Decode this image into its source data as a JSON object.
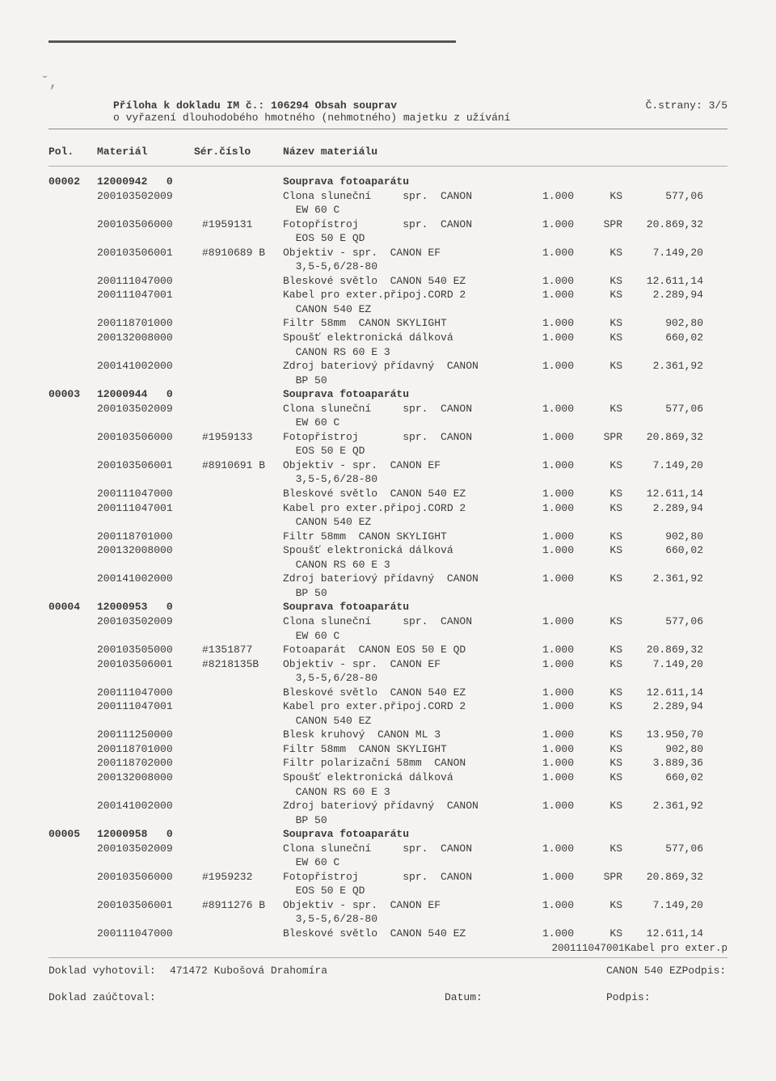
{
  "header": {
    "title_prefix": "Příloha k dokladu IM č.: ",
    "doc_no": "106294",
    "title_suffix": " Obsah souprav",
    "subtitle": "o vyřazení dlouhodobého hmotného (nehmotného) majetku z užívání",
    "page_label": "Č.strany: 3/5"
  },
  "columns": {
    "pol": "Pol.",
    "material": "Materiál",
    "serial": "Sér.číslo",
    "name": "Název materiálu"
  },
  "groups": [
    {
      "pol": "00002",
      "material": "12000942",
      "serial": "0",
      "name": "Souprava fotoaparátu",
      "items": [
        {
          "mat": "200103502009",
          "ser": "",
          "name": "Clona sluneční     spr.  CANON\n  EW 60 C",
          "qty": "1.000",
          "unit": "KS",
          "val": "577,06"
        },
        {
          "mat": "200103506000",
          "ser": "#1959131",
          "name": "Fotopřístroj       spr.  CANON\n  EOS 50 E QD",
          "qty": "1.000",
          "unit": "SPR",
          "val": "20.869,32"
        },
        {
          "mat": "200103506001",
          "ser": "#8910689 B",
          "name": "Objektiv - spr.  CANON EF\n  3,5-5,6/28-80",
          "qty": "1.000",
          "unit": "KS",
          "val": "7.149,20"
        },
        {
          "mat": "200111047000",
          "ser": "",
          "name": "Bleskové světlo  CANON 540 EZ",
          "qty": "1.000",
          "unit": "KS",
          "val": "12.611,14"
        },
        {
          "mat": "200111047001",
          "ser": "",
          "name": "Kabel pro exter.připoj.CORD 2\n  CANON 540 EZ",
          "qty": "1.000",
          "unit": "KS",
          "val": "2.289,94"
        },
        {
          "mat": "200118701000",
          "ser": "",
          "name": "Filtr 58mm  CANON SKYLIGHT",
          "qty": "1.000",
          "unit": "KS",
          "val": "902,80"
        },
        {
          "mat": "200132008000",
          "ser": "",
          "name": "Spoušť elektronická dálková\n  CANON RS 60 E 3",
          "qty": "1.000",
          "unit": "KS",
          "val": "660,02"
        },
        {
          "mat": "200141002000",
          "ser": "",
          "name": "Zdroj bateriový přídavný  CANON\n  BP 50",
          "qty": "1.000",
          "unit": "KS",
          "val": "2.361,92"
        }
      ]
    },
    {
      "pol": "00003",
      "material": "12000944",
      "serial": "0",
      "name": "Souprava fotoaparátu",
      "items": [
        {
          "mat": "200103502009",
          "ser": "",
          "name": "Clona sluneční     spr.  CANON\n  EW 60 C",
          "qty": "1.000",
          "unit": "KS",
          "val": "577,06"
        },
        {
          "mat": "200103506000",
          "ser": "#1959133",
          "name": "Fotopřístroj       spr.  CANON\n  EOS 50 E QD",
          "qty": "1.000",
          "unit": "SPR",
          "val": "20.869,32"
        },
        {
          "mat": "200103506001",
          "ser": "#8910691 B",
          "name": "Objektiv - spr.  CANON EF\n  3,5-5,6/28-80",
          "qty": "1.000",
          "unit": "KS",
          "val": "7.149,20"
        },
        {
          "mat": "200111047000",
          "ser": "",
          "name": "Bleskové světlo  CANON 540 EZ",
          "qty": "1.000",
          "unit": "KS",
          "val": "12.611,14"
        },
        {
          "mat": "200111047001",
          "ser": "",
          "name": "Kabel pro exter.připoj.CORD 2\n  CANON 540 EZ",
          "qty": "1.000",
          "unit": "KS",
          "val": "2.289,94"
        },
        {
          "mat": "200118701000",
          "ser": "",
          "name": "Filtr 58mm  CANON SKYLIGHT",
          "qty": "1.000",
          "unit": "KS",
          "val": "902,80"
        },
        {
          "mat": "200132008000",
          "ser": "",
          "name": "Spoušť elektronická dálková\n  CANON RS 60 E 3",
          "qty": "1.000",
          "unit": "KS",
          "val": "660,02"
        },
        {
          "mat": "200141002000",
          "ser": "",
          "name": "Zdroj bateriový přídavný  CANON\n  BP 50",
          "qty": "1.000",
          "unit": "KS",
          "val": "2.361,92"
        }
      ]
    },
    {
      "pol": "00004",
      "material": "12000953",
      "serial": "0",
      "name": "Souprava fotoaparátu",
      "items": [
        {
          "mat": "200103502009",
          "ser": "",
          "name": "Clona sluneční     spr.  CANON\n  EW 60 C",
          "qty": "1.000",
          "unit": "KS",
          "val": "577,06"
        },
        {
          "mat": "200103505000",
          "ser": "#1351877",
          "name": "Fotoaparát  CANON EOS 50 E QD",
          "qty": "1.000",
          "unit": "KS",
          "val": "20.869,32"
        },
        {
          "mat": "200103506001",
          "ser": "#8218135B",
          "name": "Objektiv - spr.  CANON EF\n  3,5-5,6/28-80",
          "qty": "1.000",
          "unit": "KS",
          "val": "7.149,20"
        },
        {
          "mat": "200111047000",
          "ser": "",
          "name": "Bleskové světlo  CANON 540 EZ",
          "qty": "1.000",
          "unit": "KS",
          "val": "12.611,14"
        },
        {
          "mat": "200111047001",
          "ser": "",
          "name": "Kabel pro exter.připoj.CORD 2\n  CANON 540 EZ",
          "qty": "1.000",
          "unit": "KS",
          "val": "2.289,94"
        },
        {
          "mat": "200111250000",
          "ser": "",
          "name": "Blesk kruhový  CANON ML 3",
          "qty": "1.000",
          "unit": "KS",
          "val": "13.950,70"
        },
        {
          "mat": "200118701000",
          "ser": "",
          "name": "Filtr 58mm  CANON SKYLIGHT",
          "qty": "1.000",
          "unit": "KS",
          "val": "902,80"
        },
        {
          "mat": "200118702000",
          "ser": "",
          "name": "Filtr polarizační 58mm  CANON",
          "qty": "1.000",
          "unit": "KS",
          "val": "3.889,36"
        },
        {
          "mat": "200132008000",
          "ser": "",
          "name": "Spoušť elektronická dálková\n  CANON RS 60 E 3",
          "qty": "1.000",
          "unit": "KS",
          "val": "660,02"
        },
        {
          "mat": "200141002000",
          "ser": "",
          "name": "Zdroj bateriový přídavný  CANON\n  BP 50",
          "qty": "1.000",
          "unit": "KS",
          "val": "2.361,92"
        }
      ]
    },
    {
      "pol": "00005",
      "material": "12000958",
      "serial": "0",
      "name": "Souprava fotoaparátu",
      "items": [
        {
          "mat": "200103502009",
          "ser": "",
          "name": "Clona sluneční     spr.  CANON\n  EW 60 C",
          "qty": "1.000",
          "unit": "KS",
          "val": "577,06"
        },
        {
          "mat": "200103506000",
          "ser": "#1959232",
          "name": "Fotopřístroj       spr.  CANON\n  EOS 50 E QD",
          "qty": "1.000",
          "unit": "SPR",
          "val": "20.869,32"
        },
        {
          "mat": "200103506001",
          "ser": "#8911276 B",
          "name": "Objektiv - spr.  CANON EF\n  3,5-5,6/28-80",
          "qty": "1.000",
          "unit": "KS",
          "val": "7.149,20"
        },
        {
          "mat": "200111047000",
          "ser": "",
          "name": "Bleskové světlo  CANON 540 EZ",
          "qty": "1.000",
          "unit": "KS",
          "val": "12.611,14"
        }
      ]
    }
  ],
  "overflow": "200111047001Kabel pro exter.p",
  "footer": {
    "created_label": "Doklad vyhotovil:",
    "created_value": "471472 Kubošová Drahomíra",
    "extra_mid": "CANON 540 EZPodpis:",
    "posted_label": "Doklad zaúčtoval:",
    "date_label": "Datum:",
    "sign_label": "Podpis:"
  }
}
